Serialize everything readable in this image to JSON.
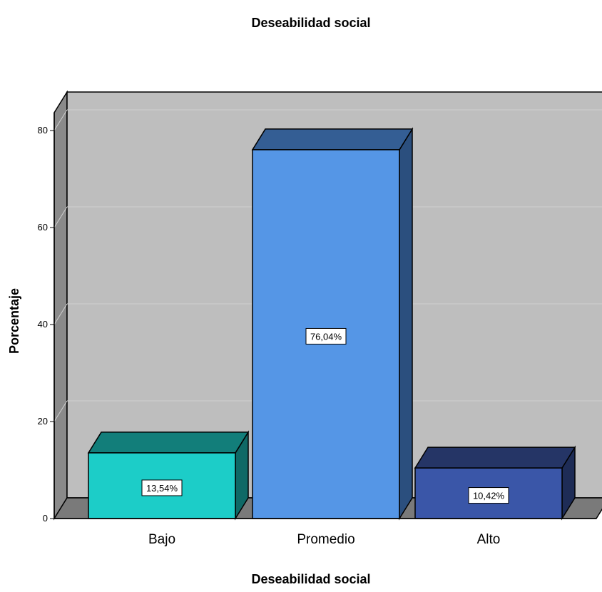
{
  "chart_data": {
    "type": "bar",
    "title": "Deseabilidad social",
    "xlabel": "Deseabilidad social",
    "ylabel": "Porcentaje",
    "categories": [
      "Bajo",
      "Promedio",
      "Alto"
    ],
    "values": [
      13.54,
      76.04,
      10.42
    ],
    "data_labels": [
      "13,54%",
      "76,04%",
      "10,42%"
    ],
    "yticks": [
      0,
      20,
      40,
      60,
      80
    ],
    "ylim": [
      0,
      80
    ],
    "grid": true,
    "style": "3d",
    "colors": {
      "bars": [
        "#1ccdc8",
        "#5596e6",
        "#3a56a8"
      ],
      "bar_tops": [
        "#127e7a",
        "#345e94",
        "#253566"
      ],
      "bar_sides": [
        "#0f6966",
        "#2b4f7e",
        "#1e2c56"
      ],
      "back_wall": "#bebebe",
      "side_wall": "#8a8a8a",
      "floor": "#7a7a7a",
      "gridline": "#d0d0d0"
    }
  }
}
